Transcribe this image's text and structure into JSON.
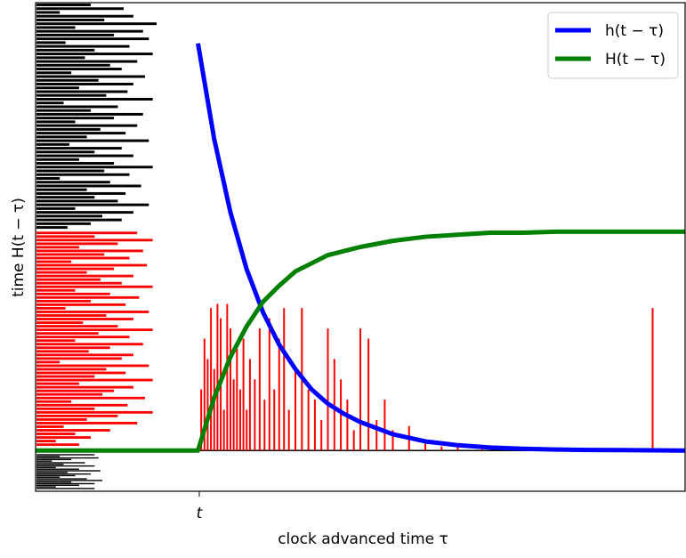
{
  "chart_data": {
    "type": "line",
    "title": "",
    "xlabel": "clock advanced time τ",
    "ylabel": "time H(t − τ)",
    "x_tick_label": "t",
    "xlim": [
      -1.0,
      3.0
    ],
    "ylim": [
      -0.2,
      2.2
    ],
    "t_position": 0.0,
    "grid": false,
    "legend_placement": "top-right",
    "series": [
      {
        "name": "h(t − τ)",
        "color": "#0000ff",
        "kind": "line",
        "x": [
          0.0,
          0.1,
          0.2,
          0.3,
          0.4,
          0.5,
          0.6,
          0.7,
          0.8,
          0.9,
          1.0,
          1.2,
          1.4,
          1.6,
          1.8,
          2.0,
          2.2,
          2.4,
          2.6,
          2.8,
          3.0
        ],
        "y": [
          2.0,
          1.53,
          1.17,
          0.89,
          0.68,
          0.52,
          0.4,
          0.3,
          0.23,
          0.18,
          0.14,
          0.08,
          0.045,
          0.026,
          0.015,
          0.009,
          0.005,
          0.003,
          0.002,
          0.001,
          0.0
        ]
      },
      {
        "name": "H(t − τ)",
        "color": "#008000",
        "kind": "line",
        "x": [
          -1.0,
          0.0,
          0.1,
          0.2,
          0.3,
          0.4,
          0.5,
          0.6,
          0.7,
          0.8,
          0.9,
          1.0,
          1.2,
          1.4,
          1.6,
          1.8,
          2.0,
          2.2,
          2.4,
          2.6,
          2.8,
          3.0
        ],
        "y": [
          0.0,
          0.0,
          0.26,
          0.46,
          0.61,
          0.73,
          0.81,
          0.88,
          0.92,
          0.96,
          0.98,
          1.0,
          1.03,
          1.05,
          1.06,
          1.07,
          1.07,
          1.075,
          1.075,
          1.075,
          1.075,
          1.075
        ]
      }
    ],
    "spikes": {
      "color": "#ff0000",
      "x": [
        0.02,
        0.04,
        0.06,
        0.08,
        0.1,
        0.12,
        0.14,
        0.16,
        0.18,
        0.2,
        0.22,
        0.24,
        0.26,
        0.28,
        0.3,
        0.32,
        0.35,
        0.38,
        0.41,
        0.44,
        0.47,
        0.5,
        0.53,
        0.56,
        0.6,
        0.64,
        0.68,
        0.72,
        0.76,
        0.8,
        0.84,
        0.88,
        0.92,
        0.96,
        1.0,
        1.05,
        1.1,
        1.15,
        1.2,
        1.3,
        1.4,
        1.5,
        1.6,
        1.75,
        2.05,
        2.8
      ],
      "y": [
        0.3,
        0.55,
        0.45,
        0.7,
        0.4,
        0.72,
        0.65,
        0.2,
        0.72,
        0.6,
        0.35,
        0.5,
        0.3,
        0.55,
        0.2,
        0.45,
        0.35,
        0.6,
        0.25,
        0.65,
        0.3,
        0.55,
        0.7,
        0.2,
        0.4,
        0.7,
        0.3,
        0.25,
        0.15,
        0.6,
        0.45,
        0.35,
        0.25,
        0.1,
        0.6,
        0.55,
        0.15,
        0.25,
        0.1,
        0.12,
        0.05,
        0.02,
        0.03,
        0.01,
        0.01,
        0.7
      ]
    },
    "left_bars": {
      "black_upper": [
        0.28,
        0.45,
        0.12,
        0.5,
        0.35,
        0.62,
        0.2,
        0.55,
        0.4,
        0.58,
        0.15,
        0.48,
        0.3,
        0.6,
        0.25,
        0.52,
        0.38,
        0.44,
        0.18,
        0.56,
        0.32,
        0.5,
        0.22,
        0.47,
        0.36,
        0.6,
        0.14,
        0.42,
        0.28,
        0.55,
        0.4,
        0.2,
        0.52,
        0.33,
        0.46,
        0.26,
        0.58,
        0.17,
        0.44,
        0.3,
        0.5,
        0.22,
        0.4,
        0.6,
        0.35,
        0.48,
        0.12,
        0.38,
        0.54,
        0.26,
        0.46,
        0.3,
        0.42,
        0.58,
        0.2,
        0.5,
        0.34,
        0.44,
        0.28,
        0.16
      ],
      "red": [
        0.52,
        0.3,
        0.6,
        0.42,
        0.22,
        0.55,
        0.35,
        0.48,
        0.18,
        0.57,
        0.4,
        0.26,
        0.5,
        0.33,
        0.44,
        0.6,
        0.2,
        0.38,
        0.53,
        0.28,
        0.46,
        0.15,
        0.58,
        0.36,
        0.5,
        0.24,
        0.42,
        0.6,
        0.32,
        0.48,
        0.2,
        0.55,
        0.38,
        0.27,
        0.5,
        0.44,
        0.12,
        0.58,
        0.36,
        0.46,
        0.3,
        0.6,
        0.22,
        0.5,
        0.4,
        0.34,
        0.56,
        0.18,
        0.47,
        0.3,
        0.6,
        0.42,
        0.26,
        0.52,
        0.14,
        0.38,
        0.2,
        0.28,
        0.1,
        0.22
      ],
      "black_lower": [
        0.3,
        0.12,
        0.32,
        0.18,
        0.08,
        0.25,
        0.14,
        0.3,
        0.1,
        0.22,
        0.33,
        0.16,
        0.28,
        0.2,
        0.12,
        0.26,
        0.34,
        0.18,
        0.3,
        0.22,
        0.1,
        0.3
      ]
    }
  }
}
